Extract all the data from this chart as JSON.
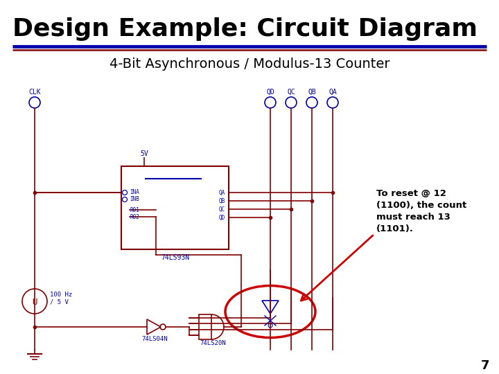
{
  "title": "Design Example: Circuit Diagram",
  "subtitle": "4-Bit Asynchronous / Modulus-13 Counter",
  "title_fontsize": 26,
  "subtitle_fontsize": 14,
  "bg_color": "#ffffff",
  "blue": "#0000aa",
  "dark_red": "#800000",
  "red": "#cc0000",
  "black": "#000000",
  "annotation_text": "To reset @ 12\n(1100), the count\nmust reach 13\n(1101).",
  "page_num": "7",
  "clk_label": "CLK",
  "output_labels": [
    "QD",
    "QC",
    "QB",
    "QA"
  ],
  "ic_label": "74LS93N",
  "not_gate_label": "74LS04N",
  "and_gate_label": "74LS20N",
  "freq_label": "100 Hz\n/ 5 V",
  "vcc_label": "5V"
}
